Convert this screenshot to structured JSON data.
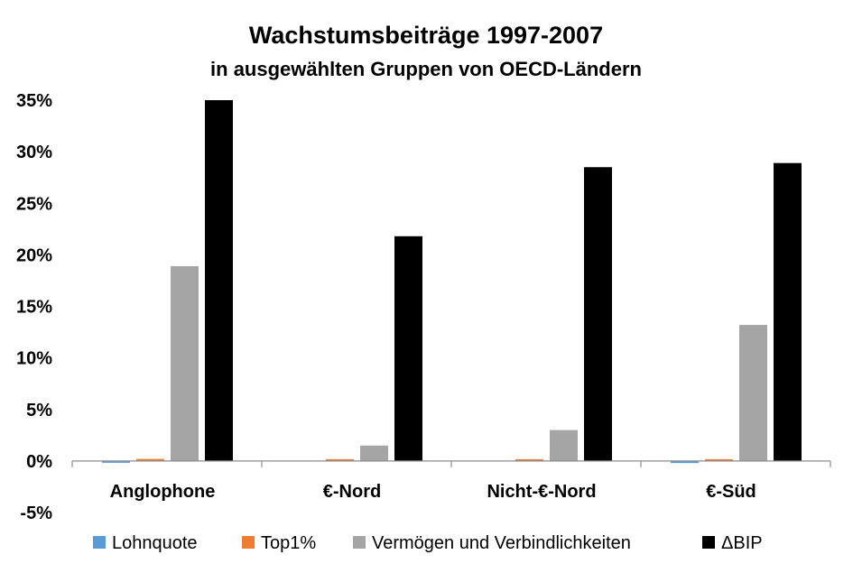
{
  "chart_data": {
    "type": "bar",
    "title": "Wachstumsbeiträge 1997-2007",
    "subtitle": "in ausgewählten Gruppen von OECD-Ländern",
    "xlabel": "",
    "ylabel": "",
    "ylim": [
      -0.05,
      0.35
    ],
    "yticks": [
      -0.05,
      0,
      0.05,
      0.1,
      0.15,
      0.2,
      0.25,
      0.3,
      0.35
    ],
    "ytick_labels": [
      "-5%",
      "0%",
      "5%",
      "10%",
      "15%",
      "20%",
      "25%",
      "30%",
      "35%"
    ],
    "categories": [
      "Anglophone",
      "€-Nord",
      "Nicht-€-Nord",
      "€-Süd"
    ],
    "series": [
      {
        "name": "Lohnquote",
        "color": "#5B9BD5",
        "values": [
          -0.001,
          0.0,
          0.0,
          -0.002
        ]
      },
      {
        "name": "Top1%",
        "color": "#ED7D31",
        "values": [
          0.002,
          0.001,
          0.001,
          0.001
        ]
      },
      {
        "name": "Vermögen und Verbindlichkeiten",
        "color": "#A5A5A5",
        "values": [
          0.189,
          0.015,
          0.03,
          0.132
        ]
      },
      {
        "name": "ΔBIP",
        "color": "#000000",
        "values": [
          0.35,
          0.218,
          0.285,
          0.289
        ]
      }
    ],
    "grid": false,
    "legend_position": "bottom"
  }
}
